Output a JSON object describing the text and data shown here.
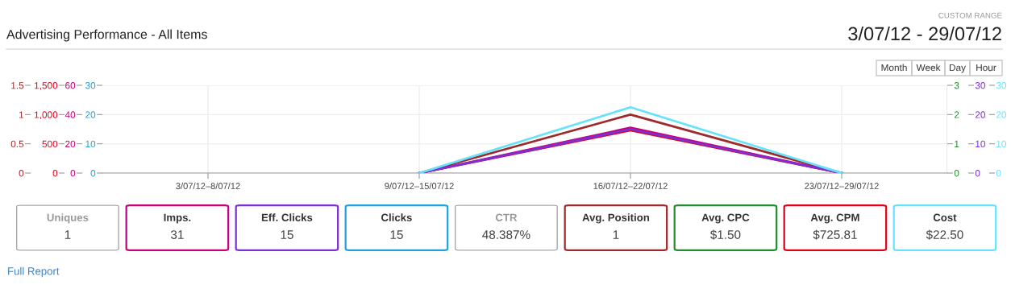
{
  "chart_data": [
    {
      "type": "line",
      "title": "Advertising Performance - All Items",
      "annotations": [
        "CUSTOM RANGE",
        "3/07/12 - 29/07/12",
        "Month",
        "Week",
        "Day",
        "Hour",
        "Full Report"
      ],
      "categories": [
        "3/07/12–8/07/12",
        "9/07/12–15/07/12",
        "16/07/12–22/07/12",
        "23/07/12–29/07/12"
      ],
      "grid": true,
      "marker": "none",
      "line_style": "solid",
      "ylim": [
        0,
        1.5
      ],
      "yticks": [
        0,
        0.5,
        1,
        1.5
      ],
      "y2lim": [
        0,
        1500
      ],
      "y2ticks": [
        0,
        500,
        {
          "value": 1000,
          "label": "1,000"
        },
        {
          "value": 1500,
          "label": "1,500"
        }
      ],
      "y3lim": [
        0,
        60
      ],
      "y3ticks": [
        0,
        20,
        40,
        60
      ],
      "series": [
        {
          "color": "#9e2a2b",
          "values": [
            null,
            0,
            1,
            0
          ]
        },
        {
          "color": "#c8007a",
          "axis": "y3",
          "values": [
            null,
            0,
            31,
            0
          ]
        },
        {
          "color": "#e3001b",
          "axis": "y2",
          "values": [
            null,
            0,
            730,
            0
          ]
        }
      ]
    },
    {
      "type": "line",
      "tick_labels": "y",
      "marker": "none",
      "line_style": "solid",
      "ylim": [
        0,
        30
      ],
      "yticks": [
        0,
        10,
        20,
        30
      ],
      "y2lim": [
        0,
        3
      ],
      "y2ticks": [
        0,
        1,
        2,
        3
      ],
      "y3lim": [
        0,
        30
      ],
      "y3ticks": [
        0,
        10,
        20,
        30
      ],
      "series": [
        {
          "color": "#1fa3dc",
          "values": [
            null,
            null,
            null,
            null
          ]
        },
        {
          "color": "#238c2e",
          "axis": "y2",
          "values": [
            null,
            null,
            null,
            null
          ]
        },
        {
          "color": "#7b2fd6",
          "axis": "y3",
          "values": [
            null,
            0,
            15,
            0
          ]
        }
      ]
    },
    {
      "type": "line",
      "tick_labels": "y",
      "marker": "none",
      "line_style": "solid",
      "ylim": [
        0,
        30
      ],
      "yticks": [
        0,
        10,
        20,
        30
      ],
      "series": [
        {
          "color": "#66e3fb",
          "values": [
            null,
            0,
            22.5,
            0
          ]
        }
      ]
    },
    {
      "type": "other",
      "categories": [
        "Uniques",
        "Imps.",
        "Eff. Clicks",
        "Clicks",
        "CTR",
        "Avg. Position",
        "Avg. CPC",
        "Avg. CPM",
        "Cost"
      ],
      "value_labels": [
        "1",
        "31",
        "15",
        "15",
        "48.387%",
        "1",
        "$1.50",
        "$725.81",
        "$22.50"
      ],
      "colors": [
        "#a8a8a8",
        "#c8007a",
        "#7b2fd6",
        "#1fa3dc",
        "#a8a8a8",
        "#9e2a2b",
        "#238c2e",
        "#e3001b",
        "#66e3fb"
      ]
    }
  ]
}
